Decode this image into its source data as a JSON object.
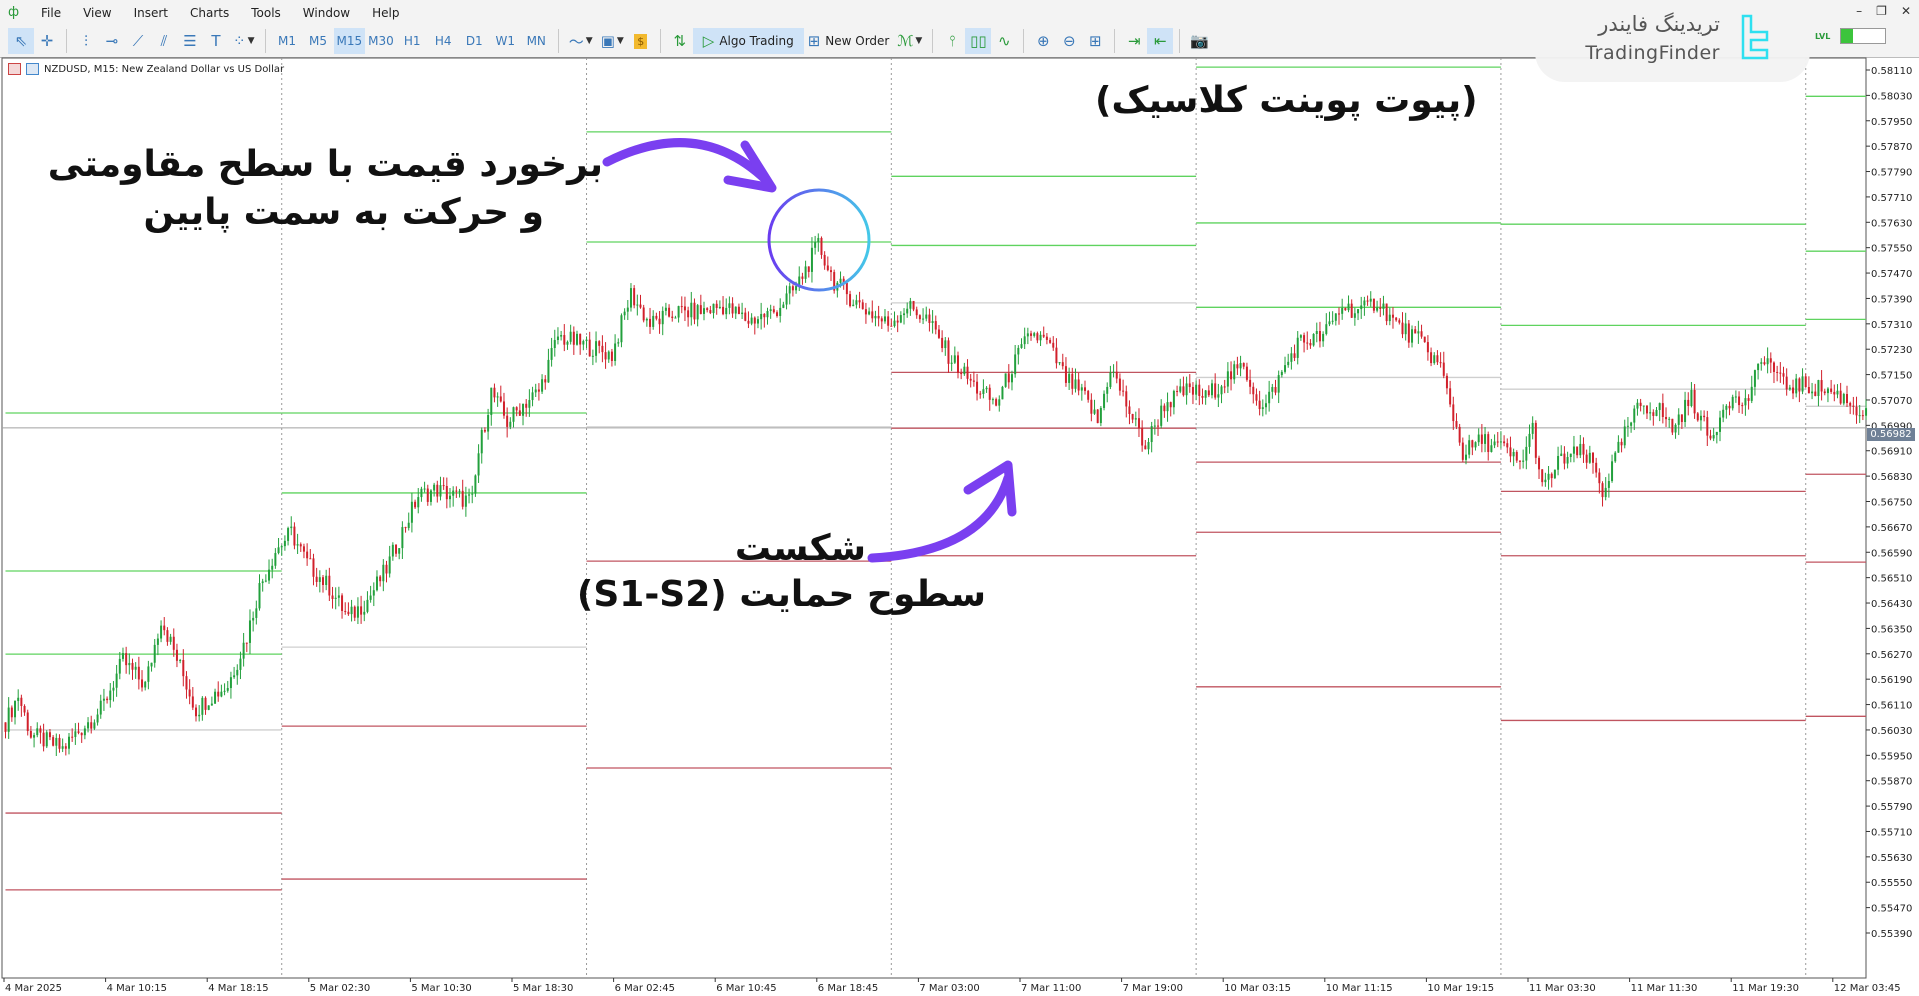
{
  "menu": {
    "items": [
      "File",
      "View",
      "Insert",
      "Charts",
      "Tools",
      "Window",
      "Help"
    ]
  },
  "toolbar": {
    "timeframes": [
      "M1",
      "M5",
      "M15",
      "M30",
      "H1",
      "H4",
      "D1",
      "W1",
      "MN"
    ],
    "active_timeframe": "M15",
    "algo_trading_label": "Algo Trading",
    "new_order_label": "New Order",
    "lvl_label": "LVL"
  },
  "chart": {
    "title": "NZDUSD, M15:  New Zealand Dollar vs US Dollar",
    "bid_price": "0.56982"
  },
  "watermark": {
    "persian": "تریدینگ فایندر",
    "english": "TradingFinder"
  },
  "annotations": {
    "title": "(پیوت پوینت کلاسیک)",
    "resistance_line1": "برخورد قیمت با سطح مقاومتی",
    "resistance_line2": "و حرکت به سمت پایین",
    "support_line1": "شکست",
    "support_line2": "سطوح حمایت (S1-S2)"
  },
  "colors": {
    "bull": "#22a03c",
    "bear": "#d1202b",
    "resistance": "#5fd35f",
    "support": "#c05560",
    "pivot": "#cfcfcf",
    "bid_line": "#a0a0a0",
    "annotation": "#7a3ff0",
    "circle_end": "#44c8e8"
  },
  "chart_data": {
    "type": "candlestick",
    "symbol": "NZDUSD",
    "timeframe": "M15",
    "y_ticks": [
      "0.58110",
      "0.58030",
      "0.57950",
      "0.57870",
      "0.57790",
      "0.57710",
      "0.57630",
      "0.57550",
      "0.57470",
      "0.57390",
      "0.57310",
      "0.57230",
      "0.57150",
      "0.57070",
      "0.56990",
      "0.56910",
      "0.56830",
      "0.56750",
      "0.56670",
      "0.56590",
      "0.56510",
      "0.56430",
      "0.56350",
      "0.56270",
      "0.56190",
      "0.56110",
      "0.56030",
      "0.55950",
      "0.55870",
      "0.55790",
      "0.55710",
      "0.55630",
      "0.55550",
      "0.55470",
      "0.55390"
    ],
    "ylim": [
      0.5533,
      0.5813
    ],
    "x_ticks": [
      "4 Mar 2025",
      "4 Mar 10:15",
      "4 Mar 18:15",
      "5 Mar 02:30",
      "5 Mar 10:30",
      "5 Mar 18:30",
      "6 Mar 02:45",
      "6 Mar 10:45",
      "6 Mar 18:45",
      "7 Mar 03:00",
      "7 Mar 11:00",
      "7 Mar 19:00",
      "10 Mar 03:15",
      "10 Mar 11:15",
      "10 Mar 19:15",
      "11 Mar 03:30",
      "11 Mar 11:30",
      "11 Mar 19:30",
      "12 Mar 03:45"
    ],
    "bars_per_x_tick": 32,
    "day_separators_bar": [
      87,
      183,
      279,
      375,
      471,
      567
    ],
    "close_path": [
      [
        0,
        0.56054
      ],
      [
        4,
        0.56139
      ],
      [
        8,
        0.56016
      ],
      [
        18,
        0.5597
      ],
      [
        22,
        0.56016
      ],
      [
        30,
        0.56093
      ],
      [
        37,
        0.56247
      ],
      [
        44,
        0.5617
      ],
      [
        49,
        0.56382
      ],
      [
        55,
        0.56228
      ],
      [
        60,
        0.56093
      ],
      [
        64,
        0.56132
      ],
      [
        70,
        0.5617
      ],
      [
        76,
        0.56325
      ],
      [
        80,
        0.56479
      ],
      [
        85,
        0.56595
      ],
      [
        90,
        0.56652
      ],
      [
        95,
        0.56556
      ],
      [
        102,
        0.56479
      ],
      [
        108,
        0.56382
      ],
      [
        114,
        0.5644
      ],
      [
        120,
        0.56537
      ],
      [
        124,
        0.56633
      ],
      [
        130,
        0.56768
      ],
      [
        136,
        0.56787
      ],
      [
        141,
        0.56768
      ],
      [
        147,
        0.56749
      ],
      [
        149,
        0.56903
      ],
      [
        153,
        0.57096
      ],
      [
        158,
        0.57
      ],
      [
        163,
        0.57057
      ],
      [
        168,
        0.57096
      ],
      [
        174,
        0.5727
      ],
      [
        180,
        0.5725
      ],
      [
        186,
        0.57231
      ],
      [
        191,
        0.57212
      ],
      [
        197,
        0.57405
      ],
      [
        203,
        0.57308
      ],
      [
        211,
        0.57347
      ],
      [
        218,
        0.57347
      ],
      [
        226,
        0.57366
      ],
      [
        234,
        0.5732
      ],
      [
        242,
        0.57347
      ],
      [
        249,
        0.57424
      ],
      [
        253,
        0.57501
      ],
      [
        256,
        0.57559
      ],
      [
        261,
        0.57443
      ],
      [
        267,
        0.57385
      ],
      [
        272,
        0.57347
      ],
      [
        278,
        0.57308
      ],
      [
        284,
        0.57366
      ],
      [
        290,
        0.57328
      ],
      [
        297,
        0.57212
      ],
      [
        305,
        0.57115
      ],
      [
        312,
        0.57057
      ],
      [
        317,
        0.57173
      ],
      [
        323,
        0.57281
      ],
      [
        328,
        0.5725
      ],
      [
        334,
        0.57135
      ],
      [
        340,
        0.57077
      ],
      [
        344,
        0.57
      ],
      [
        348,
        0.57173
      ],
      [
        353,
        0.57057
      ],
      [
        359,
        0.56922
      ],
      [
        365,
        0.57057
      ],
      [
        373,
        0.57104
      ],
      [
        378,
        0.57077
      ],
      [
        384,
        0.57135
      ],
      [
        390,
        0.57173
      ],
      [
        396,
        0.57038
      ],
      [
        402,
        0.57154
      ],
      [
        407,
        0.5725
      ],
      [
        415,
        0.5727
      ],
      [
        421,
        0.57366
      ],
      [
        427,
        0.57347
      ],
      [
        432,
        0.57385
      ],
      [
        438,
        0.57308
      ],
      [
        446,
        0.5725
      ],
      [
        452,
        0.57173
      ],
      [
        456,
        0.57019
      ],
      [
        459,
        0.56903
      ],
      [
        465,
        0.56942
      ],
      [
        471,
        0.56922
      ],
      [
        477,
        0.56865
      ],
      [
        481,
        0.5698
      ],
      [
        484,
        0.56787
      ],
      [
        490,
        0.56884
      ],
      [
        496,
        0.56903
      ],
      [
        500,
        0.56865
      ],
      [
        503,
        0.5678
      ],
      [
        510,
        0.56961
      ],
      [
        515,
        0.57057
      ],
      [
        521,
        0.57038
      ],
      [
        525,
        0.5698
      ],
      [
        531,
        0.57077
      ],
      [
        537,
        0.56942
      ],
      [
        542,
        0.57077
      ],
      [
        548,
        0.57057
      ],
      [
        554,
        0.57212
      ],
      [
        560,
        0.57115
      ],
      [
        566,
        0.57115
      ],
      [
        573,
        0.57104
      ],
      [
        579,
        0.57077
      ],
      [
        586,
        0.57019
      ]
    ],
    "pivot_segments": [
      {
        "from": 0,
        "to": 87,
        "resistance": [
          0.57029,
          0.56531,
          0.56269
        ],
        "pivot": 0.5603,
        "support": [
          0.55768,
          0.55526
        ]
      },
      {
        "from": 87,
        "to": 183,
        "resistance": [
          0.57029,
          0.56777
        ],
        "pivot": 0.56291,
        "support": [
          0.56042,
          0.5556
        ]
      },
      {
        "from": 183,
        "to": 279,
        "resistance": [
          0.57915,
          0.57568
        ],
        "pivot": 0.56985,
        "support": [
          0.56562,
          0.5591
        ]
      },
      {
        "from": 279,
        "to": 375,
        "resistance": [
          0.57775,
          0.57557
        ],
        "pivot": 0.57376,
        "support": [
          0.57157,
          0.56981,
          0.56579
        ]
      },
      {
        "from": 375,
        "to": 471,
        "resistance": [
          0.58119,
          0.57628,
          0.57362
        ],
        "pivot": 0.57141,
        "support": [
          0.56874,
          0.56653,
          0.56166
        ]
      },
      {
        "from": 471,
        "to": 567,
        "resistance": [
          0.57624,
          0.57305
        ],
        "pivot": 0.57104,
        "support": [
          0.56782,
          0.56579,
          0.5606
        ]
      },
      {
        "from": 567,
        "to": 586,
        "resistance": [
          0.58027,
          0.57539,
          0.57324
        ],
        "pivot": 0.5705,
        "support": [
          0.56836,
          0.56559,
          0.56073
        ]
      }
    ],
    "bid": 0.56982
  }
}
